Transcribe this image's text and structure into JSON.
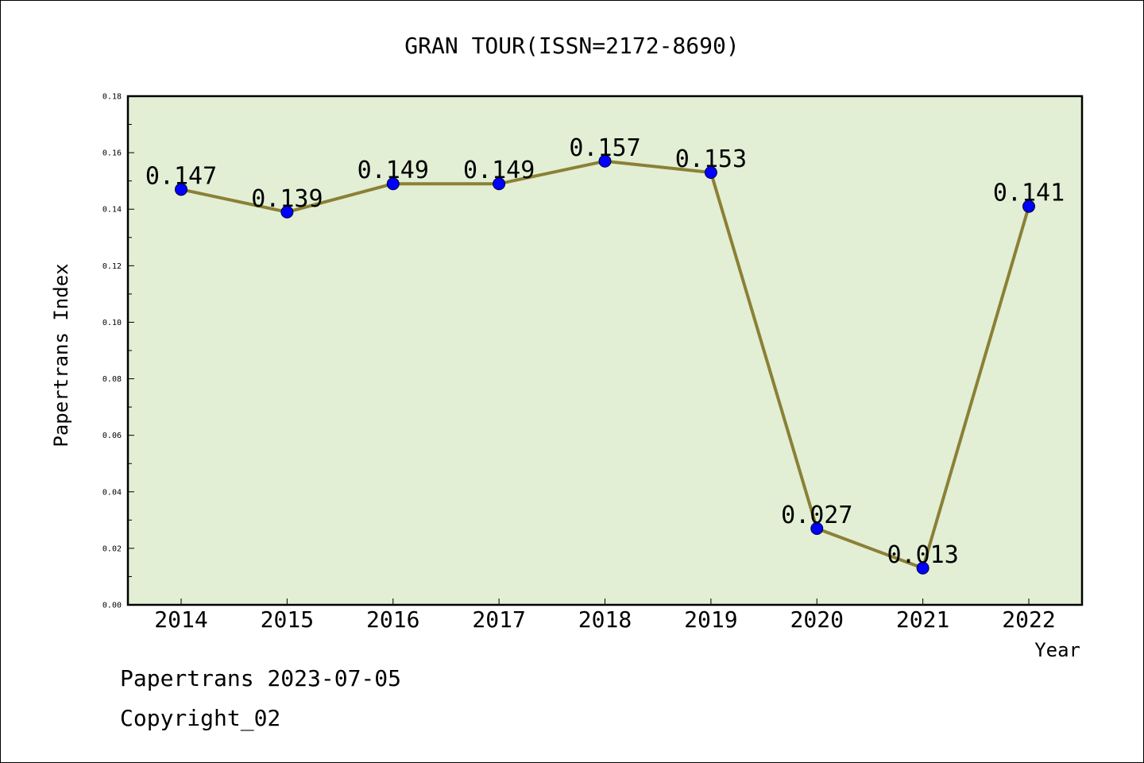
{
  "chart_data": {
    "type": "line",
    "title": "GRAN TOUR(ISSN=2172-8690)",
    "xlabel": "Year",
    "ylabel": "Papertrans Index",
    "categories": [
      "2014",
      "2015",
      "2016",
      "2017",
      "2018",
      "2019",
      "2020",
      "2021",
      "2022"
    ],
    "series": [
      {
        "values": [
          0.147,
          0.139,
          0.149,
          0.149,
          0.157,
          0.153,
          0.027,
          0.013,
          0.141
        ],
        "data_labels": [
          "0.147",
          "0.139",
          "0.149",
          "0.149",
          "0.157",
          "0.153",
          "0.027",
          "0.013",
          "0.141"
        ]
      }
    ],
    "ylim": [
      0,
      0.18
    ],
    "yticks": [
      "0.00",
      "0.02",
      "0.04",
      "0.06",
      "0.08",
      "0.10",
      "0.12",
      "0.14",
      "0.16",
      "0.18"
    ],
    "grid": false,
    "legend": "none",
    "colors": {
      "plot_background": "#e2efd5",
      "line": "#8b8035",
      "marker": "#0000ff"
    }
  },
  "footer": {
    "date_text": "Papertrans 2023-07-05",
    "copyright_text": "Copyright_02"
  }
}
